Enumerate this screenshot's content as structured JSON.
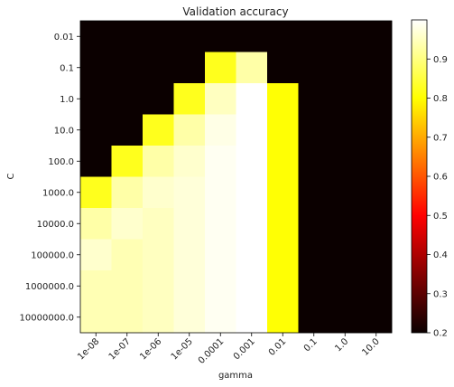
{
  "chart_data": {
    "type": "heatmap",
    "title": "Validation accuracy",
    "xlabel": "gamma",
    "ylabel": "C",
    "x_categories": [
      "1e-08",
      "1e-07",
      "1e-06",
      "1e-05",
      "0.0001",
      "0.001",
      "0.01",
      "0.1",
      "1.0",
      "10.0"
    ],
    "y_categories": [
      "0.01",
      "0.1",
      "1.0",
      "10.0",
      "100.0",
      "1000.0",
      "10000.0",
      "100000.0",
      "1000000.0",
      "10000000.0"
    ],
    "values": [
      [
        0.2,
        0.2,
        0.2,
        0.2,
        0.2,
        0.2,
        0.2,
        0.2,
        0.2,
        0.2
      ],
      [
        0.2,
        0.2,
        0.2,
        0.2,
        0.82,
        0.93,
        0.2,
        0.2,
        0.2,
        0.2
      ],
      [
        0.2,
        0.2,
        0.2,
        0.82,
        0.95,
        1.0,
        0.8,
        0.2,
        0.2,
        0.2
      ],
      [
        0.2,
        0.2,
        0.82,
        0.93,
        0.98,
        1.0,
        0.8,
        0.2,
        0.2,
        0.2
      ],
      [
        0.2,
        0.82,
        0.93,
        0.96,
        0.99,
        1.0,
        0.8,
        0.2,
        0.2,
        0.2
      ],
      [
        0.82,
        0.93,
        0.96,
        0.97,
        0.99,
        1.0,
        0.8,
        0.2,
        0.2,
        0.2
      ],
      [
        0.93,
        0.96,
        0.95,
        0.97,
        0.99,
        1.0,
        0.8,
        0.2,
        0.2,
        0.2
      ],
      [
        0.96,
        0.94,
        0.95,
        0.97,
        0.99,
        1.0,
        0.8,
        0.2,
        0.2,
        0.2
      ],
      [
        0.94,
        0.94,
        0.95,
        0.97,
        0.99,
        1.0,
        0.8,
        0.2,
        0.2,
        0.2
      ],
      [
        0.94,
        0.94,
        0.95,
        0.97,
        0.99,
        1.0,
        0.8,
        0.2,
        0.2,
        0.2
      ]
    ],
    "colormap": "hot",
    "vmin": 0.2,
    "vmax": 1.0,
    "colorbar": {
      "ticks": [
        0.2,
        0.3,
        0.4,
        0.5,
        0.6,
        0.7,
        0.8,
        0.9
      ],
      "tick_labels": [
        "0.2",
        "0.3",
        "0.4",
        "0.5",
        "0.6",
        "0.7",
        "0.8",
        "0.9"
      ],
      "placement": "right"
    },
    "grid": false
  }
}
